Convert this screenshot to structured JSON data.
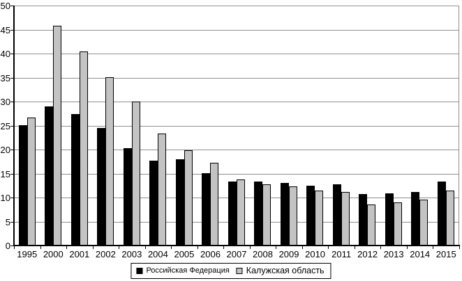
{
  "chart_data": {
    "type": "bar",
    "title": "",
    "xlabel": "",
    "ylabel": "",
    "categories": [
      "1995",
      "2000",
      "2001",
      "2002",
      "2003",
      "2004",
      "2005",
      "2006",
      "2007",
      "2008",
      "2009",
      "2010",
      "2011",
      "2012",
      "2013",
      "2014",
      "2015"
    ],
    "series": [
      {
        "name": "Российская Федерация",
        "color": "#000000",
        "values": [
          25.0,
          29.0,
          27.4,
          24.5,
          20.3,
          17.7,
          17.9,
          15.1,
          13.3,
          13.4,
          13.0,
          12.4,
          12.7,
          10.7,
          10.8,
          11.2,
          13.3
        ]
      },
      {
        "name": "Калужская область",
        "color": "#c3c3c3",
        "values": [
          26.6,
          45.8,
          40.4,
          35.1,
          30.0,
          23.3,
          19.9,
          17.3,
          13.8,
          12.7,
          12.3,
          11.4,
          11.2,
          8.6,
          9.0,
          9.5,
          11.4
        ]
      }
    ],
    "ylim": [
      0,
      50
    ],
    "ytick_step": 5,
    "ytick_labels": [
      "0",
      "5",
      "10",
      "15",
      "20",
      "25",
      "30",
      "35",
      "40",
      "45",
      "50"
    ],
    "grid": true,
    "legend_position": "bottom",
    "colors": {
      "axis": "#000000",
      "gridline": "#909090",
      "background": "#ffffff",
      "bar_border": "#000000"
    }
  }
}
